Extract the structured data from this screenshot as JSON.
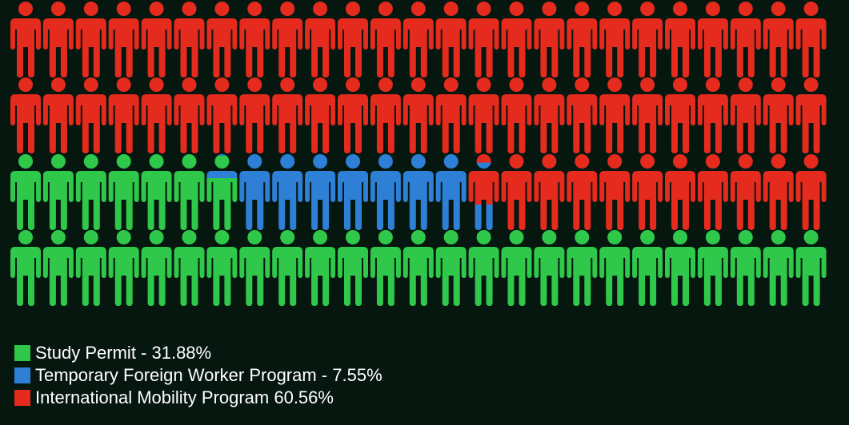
{
  "chart_data": {
    "type": "pictogram",
    "units_per_row": 25,
    "rows": 4,
    "total_units": 100,
    "series": [
      {
        "name": "Study Permit - 31.88%",
        "value": 31.88,
        "color": "#2fc84a"
      },
      {
        "name": "Temporary Foreign Worker Program - 7.55%",
        "value": 7.55,
        "color": "#2e7fd6"
      },
      {
        "name": "International Mobility Program 60.56%",
        "value": 60.56,
        "color": "#e52a1e"
      }
    ],
    "icon": "person-icon",
    "fill_order": "bottom-row-first"
  }
}
